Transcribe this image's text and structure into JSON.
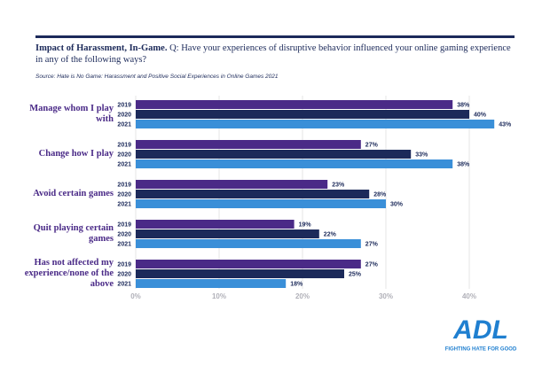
{
  "chart_data": {
    "type": "barh",
    "title": "Impact of Harassment, In-Game.",
    "question": "Q: Have your experiences of disruptive behavior influenced your online gaming experience in any of the following ways?",
    "source": "Source: Hate is No Game: Harassment and Positive Social Experiences in Online Games 2021",
    "categories": [
      "Manage whom I play with",
      "Change how I play",
      "Avoid certain games",
      "Quit playing certain games",
      "Has not affected my experience/none of the above"
    ],
    "series": [
      {
        "name": "2019",
        "color": "#4a2a87",
        "values": [
          38,
          27,
          23,
          19,
          27
        ],
        "value_labels": [
          "38%",
          "27%",
          "23%",
          "19%",
          "27%"
        ]
      },
      {
        "name": "2020",
        "color": "#1c2a5a",
        "values": [
          40,
          33,
          28,
          22,
          25
        ],
        "value_labels": [
          "40%",
          "33%",
          "28%",
          "22%",
          "25%"
        ]
      },
      {
        "name": "2021",
        "color": "#3a8fd8",
        "values": [
          43,
          38,
          30,
          27,
          18
        ],
        "value_labels": [
          "43%",
          "38%",
          "30%",
          "27%",
          "18%"
        ]
      }
    ],
    "xlim": [
      0,
      45
    ],
    "xticks": [
      {
        "value": 0,
        "label": "0%"
      },
      {
        "value": 10,
        "label": "10%"
      },
      {
        "value": 20,
        "label": "20%"
      },
      {
        "value": 30,
        "label": "30%"
      },
      {
        "value": 40,
        "label": "40%"
      }
    ],
    "grid": true,
    "logo": {
      "text": "ADL",
      "tagline": "FIGHTING HATE FOR GOOD"
    }
  }
}
